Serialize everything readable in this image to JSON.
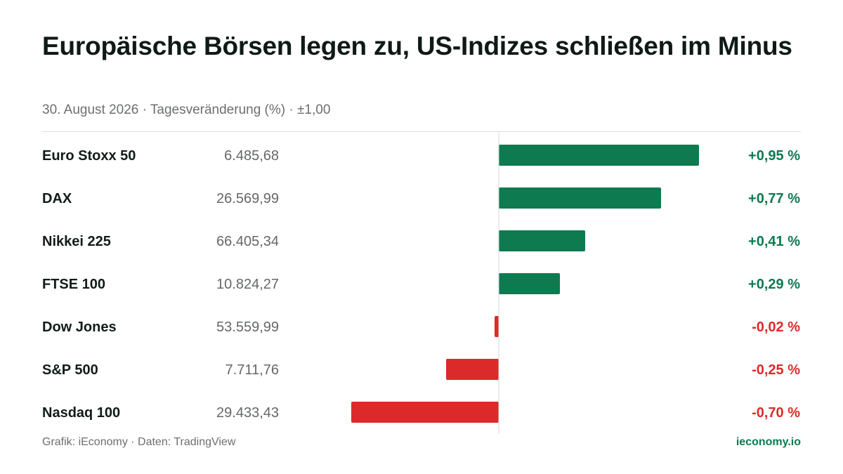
{
  "header": {
    "title": "Europäische Börsen legen zu, US-Indizes schließen im Minus",
    "subtitle": "30. August 2026 · Tagesveränderung (%) · ±1,00"
  },
  "footer": {
    "source": "Grafik: iEconomy · Daten: TradingView",
    "brand": "ieconomy.io"
  },
  "colors": {
    "positive": "#0e7a50",
    "negative": "#dc2a2a",
    "axis": "#d7d7d7"
  },
  "chart_data": {
    "type": "bar",
    "orientation": "horizontal",
    "xlim": [
      -1.0,
      1.0
    ],
    "categories": [
      "Euro Stoxx 50",
      "DAX",
      "Nikkei 225",
      "FTSE 100",
      "Dow Jones",
      "S&P 500",
      "Nasdaq 100"
    ],
    "index_levels": [
      "6.485,68",
      "26.569,99",
      "66.405,34",
      "10.824,27",
      "53.559,99",
      "7.711,76",
      "29.433,43"
    ],
    "values": [
      0.95,
      0.77,
      0.41,
      0.29,
      -0.02,
      -0.25,
      -0.7
    ],
    "value_labels": [
      "+0,95 %",
      "+0,77 %",
      "+0,41 %",
      "+0,29 %",
      "-0,02 %",
      "-0,25 %",
      "-0,70 %"
    ]
  }
}
